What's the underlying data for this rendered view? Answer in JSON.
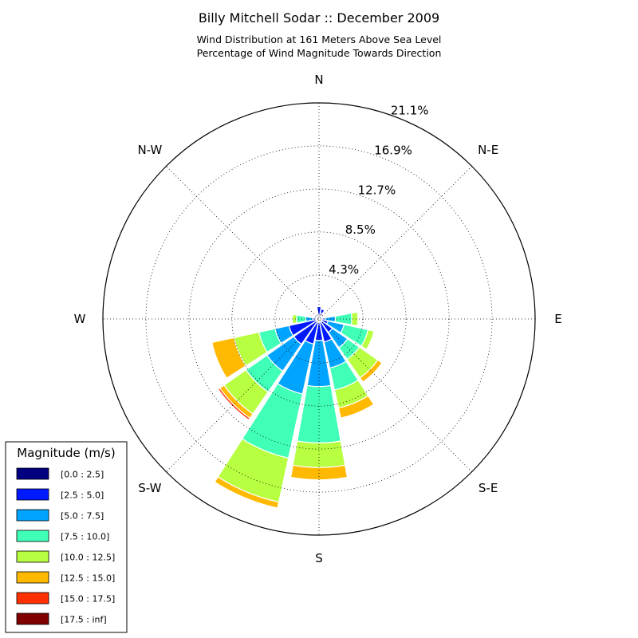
{
  "chart_data": {
    "type": "windrose",
    "title": "Billy Mitchell Sodar :: December 2009",
    "subtitle_lines": [
      "Wind Distribution at 161 Meters Above Sea Level",
      "Percentage of Wind Magnitude Towards Direction"
    ],
    "directions": [
      "N",
      "NNE",
      "NE",
      "ENE",
      "E",
      "ESE",
      "SE",
      "SSE",
      "S",
      "SSW",
      "SW",
      "WSW",
      "W",
      "WNW",
      "NW",
      "NNW"
    ],
    "direction_labels": [
      {
        "label": "N",
        "angle": 0
      },
      {
        "label": "N-E",
        "angle": 45
      },
      {
        "label": "E",
        "angle": 90
      },
      {
        "label": "S-E",
        "angle": 135
      },
      {
        "label": "S",
        "angle": 180
      },
      {
        "label": "S-W",
        "angle": 225
      },
      {
        "label": "W",
        "angle": 270
      },
      {
        "label": "N-W",
        "angle": 315
      }
    ],
    "radial_ticks": [
      4.3,
      8.5,
      12.7,
      16.9,
      21.1
    ],
    "radial_tick_labels": [
      "4.3%",
      "8.5%",
      "12.7%",
      "16.9%",
      "21.1%"
    ],
    "r_max": 21.1,
    "legend_title": "Magnitude (m/s)",
    "legend_placement": "lower-left",
    "grid": true,
    "series": [
      {
        "name": "[0.0 : 2.5]",
        "color": "#000080",
        "values": [
          0.5,
          0.6,
          0.4,
          0.3,
          0.3,
          0.3,
          0.3,
          0.3,
          0.3,
          0.3,
          0.3,
          0.3,
          0.3,
          0.3,
          0.2,
          0.3
        ]
      },
      {
        "name": "[2.5 : 5.0]",
        "color": "#0019ff",
        "values": [
          0.7,
          0.4,
          0.1,
          0.1,
          0.3,
          0.6,
          1.3,
          2.0,
          1.8,
          2.2,
          2.7,
          2.7,
          0.3,
          0.2,
          0.1,
          0.2
        ]
      },
      {
        "name": "[5.0 : 7.5]",
        "color": "#00a4ff",
        "values": [
          0.0,
          0.0,
          0.0,
          0.1,
          1.0,
          1.6,
          1.8,
          2.6,
          4.5,
          5.0,
          3.2,
          1.4,
          0.7,
          0.0,
          0.0,
          0.0
        ]
      },
      {
        "name": "[7.5 : 10.0]",
        "color": "#40ffb7",
        "values": [
          0.0,
          0.0,
          0.0,
          0.0,
          1.6,
          2.4,
          1.4,
          2.2,
          5.5,
          6.4,
          2.5,
          1.6,
          0.9,
          0.1,
          0.0,
          0.0
        ]
      },
      {
        "name": "[10.0 : 12.5]",
        "color": "#b7ff40",
        "values": [
          0.0,
          0.0,
          0.0,
          0.0,
          0.6,
          0.6,
          2.2,
          1.8,
          2.4,
          4.4,
          2.6,
          2.5,
          0.4,
          0.0,
          0.0,
          0.0
        ]
      },
      {
        "name": "[12.5 : 15.0]",
        "color": "#ffb900",
        "values": [
          0.0,
          0.0,
          0.0,
          0.0,
          0.0,
          0.0,
          0.5,
          1.0,
          1.2,
          0.6,
          0.5,
          2.2,
          0.0,
          0.0,
          0.0,
          0.0
        ]
      },
      {
        "name": "[15.0 : 17.5]",
        "color": "#ff3000",
        "values": [
          0.0,
          0.0,
          0.0,
          0.0,
          0.0,
          0.0,
          0.0,
          0.0,
          0.0,
          0.0,
          0.2,
          0.0,
          0.0,
          0.0,
          0.0,
          0.0
        ]
      },
      {
        "name": "[17.5 : inf]",
        "color": "#800000",
        "values": [
          0.0,
          0.0,
          0.0,
          0.0,
          0.0,
          0.0,
          0.0,
          0.0,
          0.0,
          0.0,
          0.0,
          0.0,
          0.0,
          0.0,
          0.0,
          0.0
        ]
      }
    ]
  }
}
